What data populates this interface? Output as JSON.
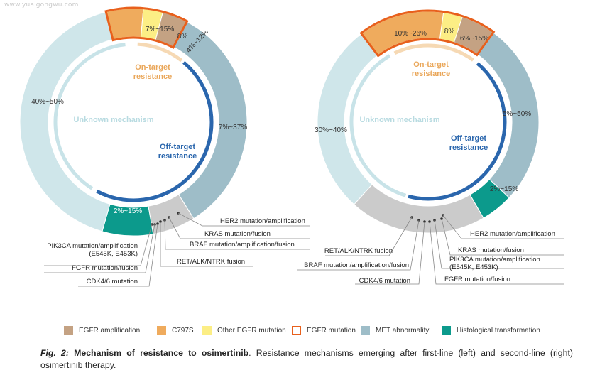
{
  "watermark": "www.yuaigongwu.com",
  "colors": {
    "egfr_amplification": "#c4a283",
    "c797s": "#efab5d",
    "other_egfr": "#fcee85",
    "egfr_mutation_border": "#e8601c",
    "met": "#9ebdc8",
    "histological": "#0c9a8c",
    "unknown": "#cfe6ea",
    "offtarget_gray": "#cbcbcb",
    "on_target_text": "#eaa75a",
    "off_target_text": "#2a66ad",
    "unknown_text": "#b8dbe1",
    "inner_on_arc": "#f6d9b4",
    "inner_off_arc": "#2a66ad",
    "inner_unknown_arc": "#c8e3e8"
  },
  "chart_data": [
    {
      "type": "pie",
      "name": "first-line",
      "segments": [
        {
          "key": "c797s",
          "label": "7%~15%",
          "legend": "C797S"
        },
        {
          "key": "other_egfr",
          "label": "8%",
          "legend": "Other EGFR mutation"
        },
        {
          "key": "egfr_amplification",
          "label": "4%~12%",
          "legend": "EGFR amplification"
        },
        {
          "key": "met",
          "label": "7%~37%",
          "legend": "MET abnormality"
        },
        {
          "key": "offtarget_gray",
          "label": ""
        },
        {
          "key": "histological",
          "label": "2%~15%",
          "legend": "Histological transformation"
        },
        {
          "key": "unknown",
          "label": "40%~50%"
        }
      ],
      "inner_labels": {
        "on_target": "On-target resistance",
        "off_target": "Off-target resistance",
        "unknown": "Unknown mechanism"
      },
      "callouts": [
        "HER2 mutation/amplification",
        "KRAS mutation/fusion",
        "BRAF mutation/amplification/fusion",
        "RET/ALK/NTRK fusion",
        "PIK3CA mutation/amplification (E545K, E453K)",
        "FGFR mutation/fusion",
        "CDK4/6 mutation"
      ]
    },
    {
      "type": "pie",
      "name": "second-line",
      "segments": [
        {
          "key": "c797s",
          "label": "10%~26%",
          "legend": "C797S"
        },
        {
          "key": "other_egfr",
          "label": "8%",
          "legend": "Other EGFR mutation"
        },
        {
          "key": "egfr_amplification",
          "label": "6%~15%",
          "legend": "EGFR amplification"
        },
        {
          "key": "met",
          "label": "5%~50%",
          "legend": "MET abnormality"
        },
        {
          "key": "histological",
          "label": "2%~15%",
          "legend": "Histological transformation"
        },
        {
          "key": "offtarget_gray",
          "label": ""
        },
        {
          "key": "unknown",
          "label": "30%~40%"
        }
      ],
      "inner_labels": {
        "on_target": "On-target resistance",
        "off_target": "Off-target resistance",
        "unknown": "Unknown mechanism"
      },
      "callouts": [
        "HER2 mutation/amplification",
        "KRAS mutation/fusion",
        "PIK3CA mutation/amplification (E545K, E453K)",
        "FGFR mutation/fusion",
        "RET/ALK/NTRK fusion",
        "BRAF mutation/amplification/fusion",
        "CDK4/6 mutation"
      ]
    }
  ],
  "legend": [
    {
      "key": "egfr_amplification",
      "label": "EGFR amplification",
      "style": "fill"
    },
    {
      "key": "c797s",
      "label": "C797S",
      "style": "fill"
    },
    {
      "key": "other_egfr",
      "label": "Other EGFR mutation",
      "style": "fill"
    },
    {
      "key": "egfr_mutation_border",
      "label": "EGFR mutation",
      "style": "border"
    },
    {
      "key": "met",
      "label": "MET abnormality",
      "style": "fill"
    },
    {
      "key": "histological",
      "label": "Histological transformation",
      "style": "fill"
    }
  ],
  "caption": {
    "fig": "Fig. 2:",
    "title": "Mechanism of resistance to osimertinib",
    "text": ". Resistance mechanisms emerging after first-line (left) and second-line (right) osimertinib therapy."
  }
}
